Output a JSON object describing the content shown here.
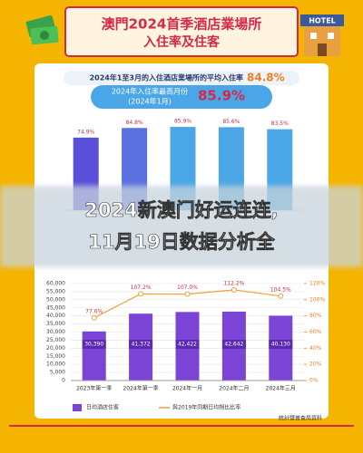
{
  "header": {
    "title_line1": "澳門2024首季酒店業場所",
    "title_line2": "入住率及住客",
    "hotel_sign": "HOTEL"
  },
  "summary": {
    "text": "2024年1至3月的入住酒店業場所的平均入住率",
    "value": "84.8%"
  },
  "peak": {
    "label": "2024年入住率最高月份",
    "month": "(2024年1月)",
    "value": "85.9%"
  },
  "overlay": {
    "line1": "2024新澳门好运连连,",
    "line2": "11月19日数据分析全"
  },
  "source": "統計暨普查局資料",
  "chart_data": [
    {
      "type": "bar",
      "values": [
        74.9,
        84.8,
        85.9,
        85.6,
        83.5
      ],
      "value_labels": [
        "74.9%",
        "84.8%",
        "85.9%",
        "85.6%",
        "83.5%"
      ],
      "colors": [
        "#5a4fd8",
        "#5a6fe0",
        "#4aa6e6",
        "#4aa6e6",
        "#4aa6e6"
      ],
      "ylim": [
        0,
        100
      ]
    },
    {
      "type": "bar_line",
      "categories": [
        "2023年第一季",
        "2024年第一季",
        "2024年一月",
        "2024年二月",
        "2024年三月"
      ],
      "series": [
        {
          "name": "日均酒店住客",
          "color": "#7b44d6",
          "values": [
            30390,
            41372,
            42422,
            42642,
            40130
          ],
          "value_labels": [
            "30,390",
            "41,372",
            "42,422",
            "42,642",
            "40,130"
          ]
        },
        {
          "name": "與2019年同期日均相比比率",
          "color": "#f0a030",
          "axis": "y2",
          "values": [
            77.6,
            107.2,
            107.0,
            112.2,
            104.5
          ],
          "value_labels": [
            "77.6%",
            "107.2%",
            "107.0%",
            "112.2%",
            "104.5%"
          ]
        }
      ],
      "ylim": [
        0,
        60000
      ],
      "yticks": [
        0,
        {
          "value": 5000,
          "label": "5,000"
        },
        {
          "value": 10000,
          "label": "10,000"
        },
        {
          "value": 15000,
          "label": "15,000"
        },
        {
          "value": 20000,
          "label": "20,000"
        },
        {
          "value": 25000,
          "label": "25,000"
        },
        {
          "value": 30000,
          "label": "30,000"
        },
        {
          "value": 35000,
          "label": "35,000"
        },
        {
          "value": 40000,
          "label": "40,000"
        },
        {
          "value": 45000,
          "label": "45,000"
        },
        {
          "value": 50000,
          "label": "50,000"
        },
        {
          "value": 55000,
          "label": "55,000"
        },
        {
          "value": 60000,
          "label": "60,000"
        }
      ],
      "y2lim": [
        0,
        120
      ],
      "y2ticks": [
        {
          "value": 0,
          "label": "0%"
        },
        {
          "value": 20,
          "label": "20%"
        },
        {
          "value": 40,
          "label": "40%"
        },
        {
          "value": 60,
          "label": "60%"
        },
        {
          "value": 80,
          "label": "80%"
        },
        {
          "value": 100,
          "label": "100%"
        },
        {
          "value": 120,
          "label": "120%"
        }
      ],
      "grid": true
    }
  ]
}
